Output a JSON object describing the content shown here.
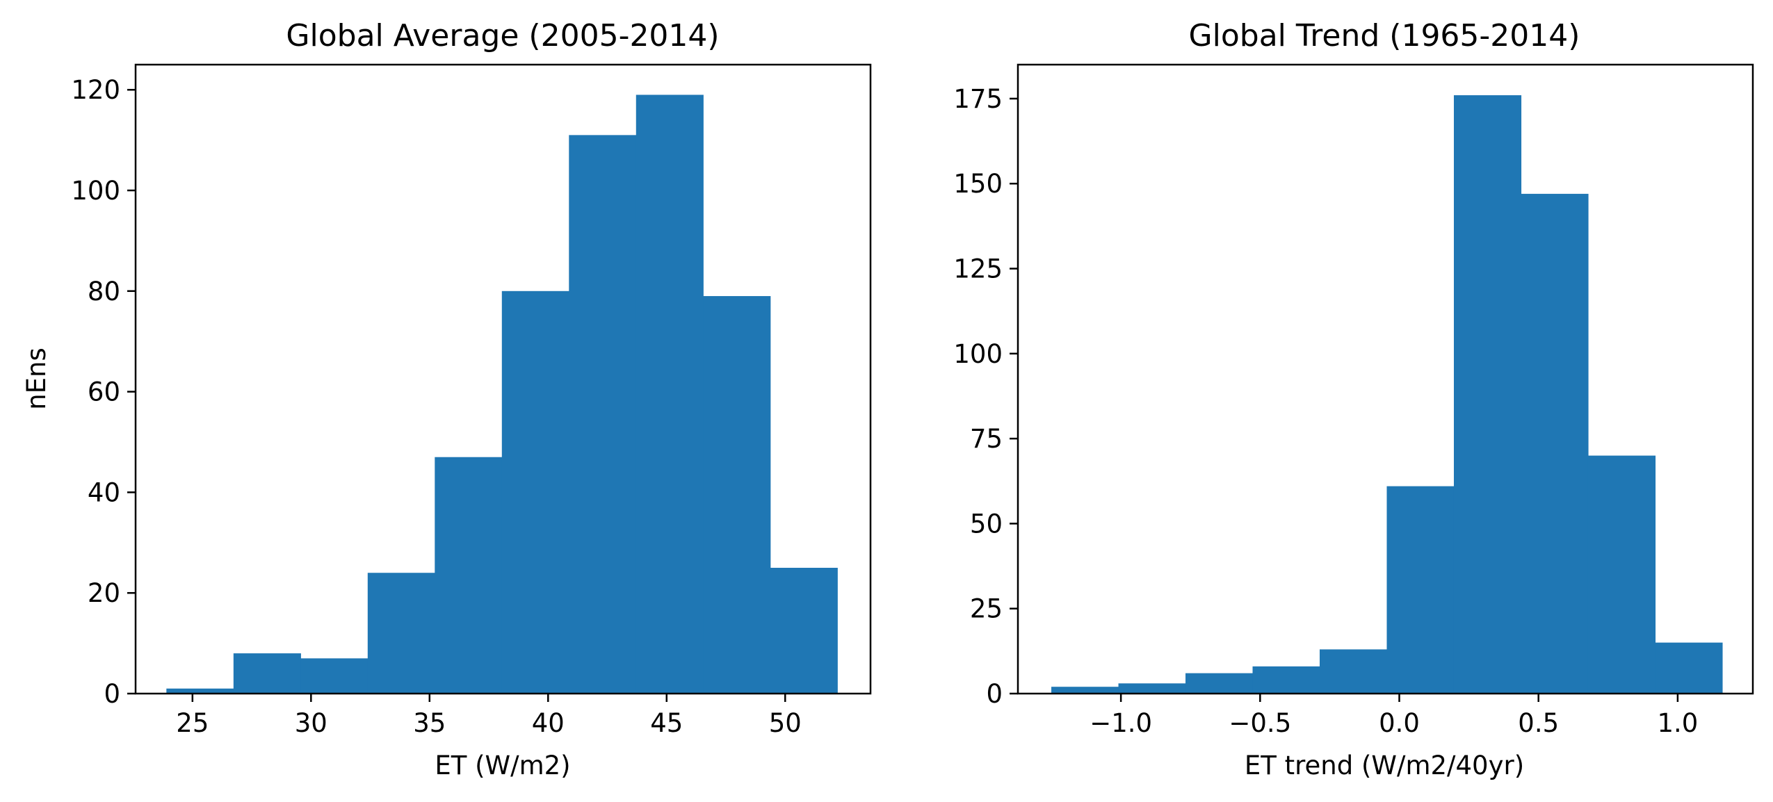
{
  "chart_data": [
    {
      "type": "bar",
      "title": "Global Average (2005-2014)",
      "xlabel": "ET (W/m2)",
      "ylabel": "nEns",
      "xlim": [
        22.6,
        53.6
      ],
      "ylim": [
        0,
        125
      ],
      "xticks": [
        25,
        30,
        35,
        40,
        45,
        50
      ],
      "xtick_labels": [
        "25",
        "30",
        "35",
        "40",
        "45",
        "50"
      ],
      "yticks": [
        0,
        20,
        40,
        60,
        80,
        100,
        120
      ],
      "ytick_labels": [
        "0",
        "20",
        "40",
        "60",
        "80",
        "100",
        "120"
      ],
      "bin_edges": [
        23.9,
        26.73,
        29.56,
        32.39,
        35.22,
        38.05,
        40.88,
        43.71,
        46.54,
        49.37,
        52.2
      ],
      "values": [
        1,
        8,
        7,
        24,
        47,
        80,
        111,
        119,
        79,
        25
      ],
      "color": "#1f77b4",
      "grid": false
    },
    {
      "type": "bar",
      "title": "Global Trend (1965-2014)",
      "xlabel": "ET trend (W/m2/40yr)",
      "ylabel": "",
      "xlim": [
        -1.37,
        1.27
      ],
      "ylim": [
        0,
        185
      ],
      "xticks": [
        -1.0,
        -0.5,
        0.0,
        0.5,
        1.0
      ],
      "xtick_labels": [
        "−1.0",
        "−0.5",
        "0.0",
        "0.5",
        "1.0"
      ],
      "yticks": [
        0,
        25,
        50,
        75,
        100,
        125,
        150,
        175
      ],
      "ytick_labels": [
        "0",
        "25",
        "50",
        "75",
        "100",
        "125",
        "150",
        "175"
      ],
      "bin_edges": [
        -1.25,
        -1.009,
        -0.768,
        -0.527,
        -0.286,
        -0.045,
        0.196,
        0.437,
        0.678,
        0.919,
        1.16
      ],
      "values": [
        2,
        3,
        6,
        8,
        13,
        61,
        176,
        147,
        70,
        15
      ],
      "color": "#1f77b4",
      "grid": false
    }
  ]
}
